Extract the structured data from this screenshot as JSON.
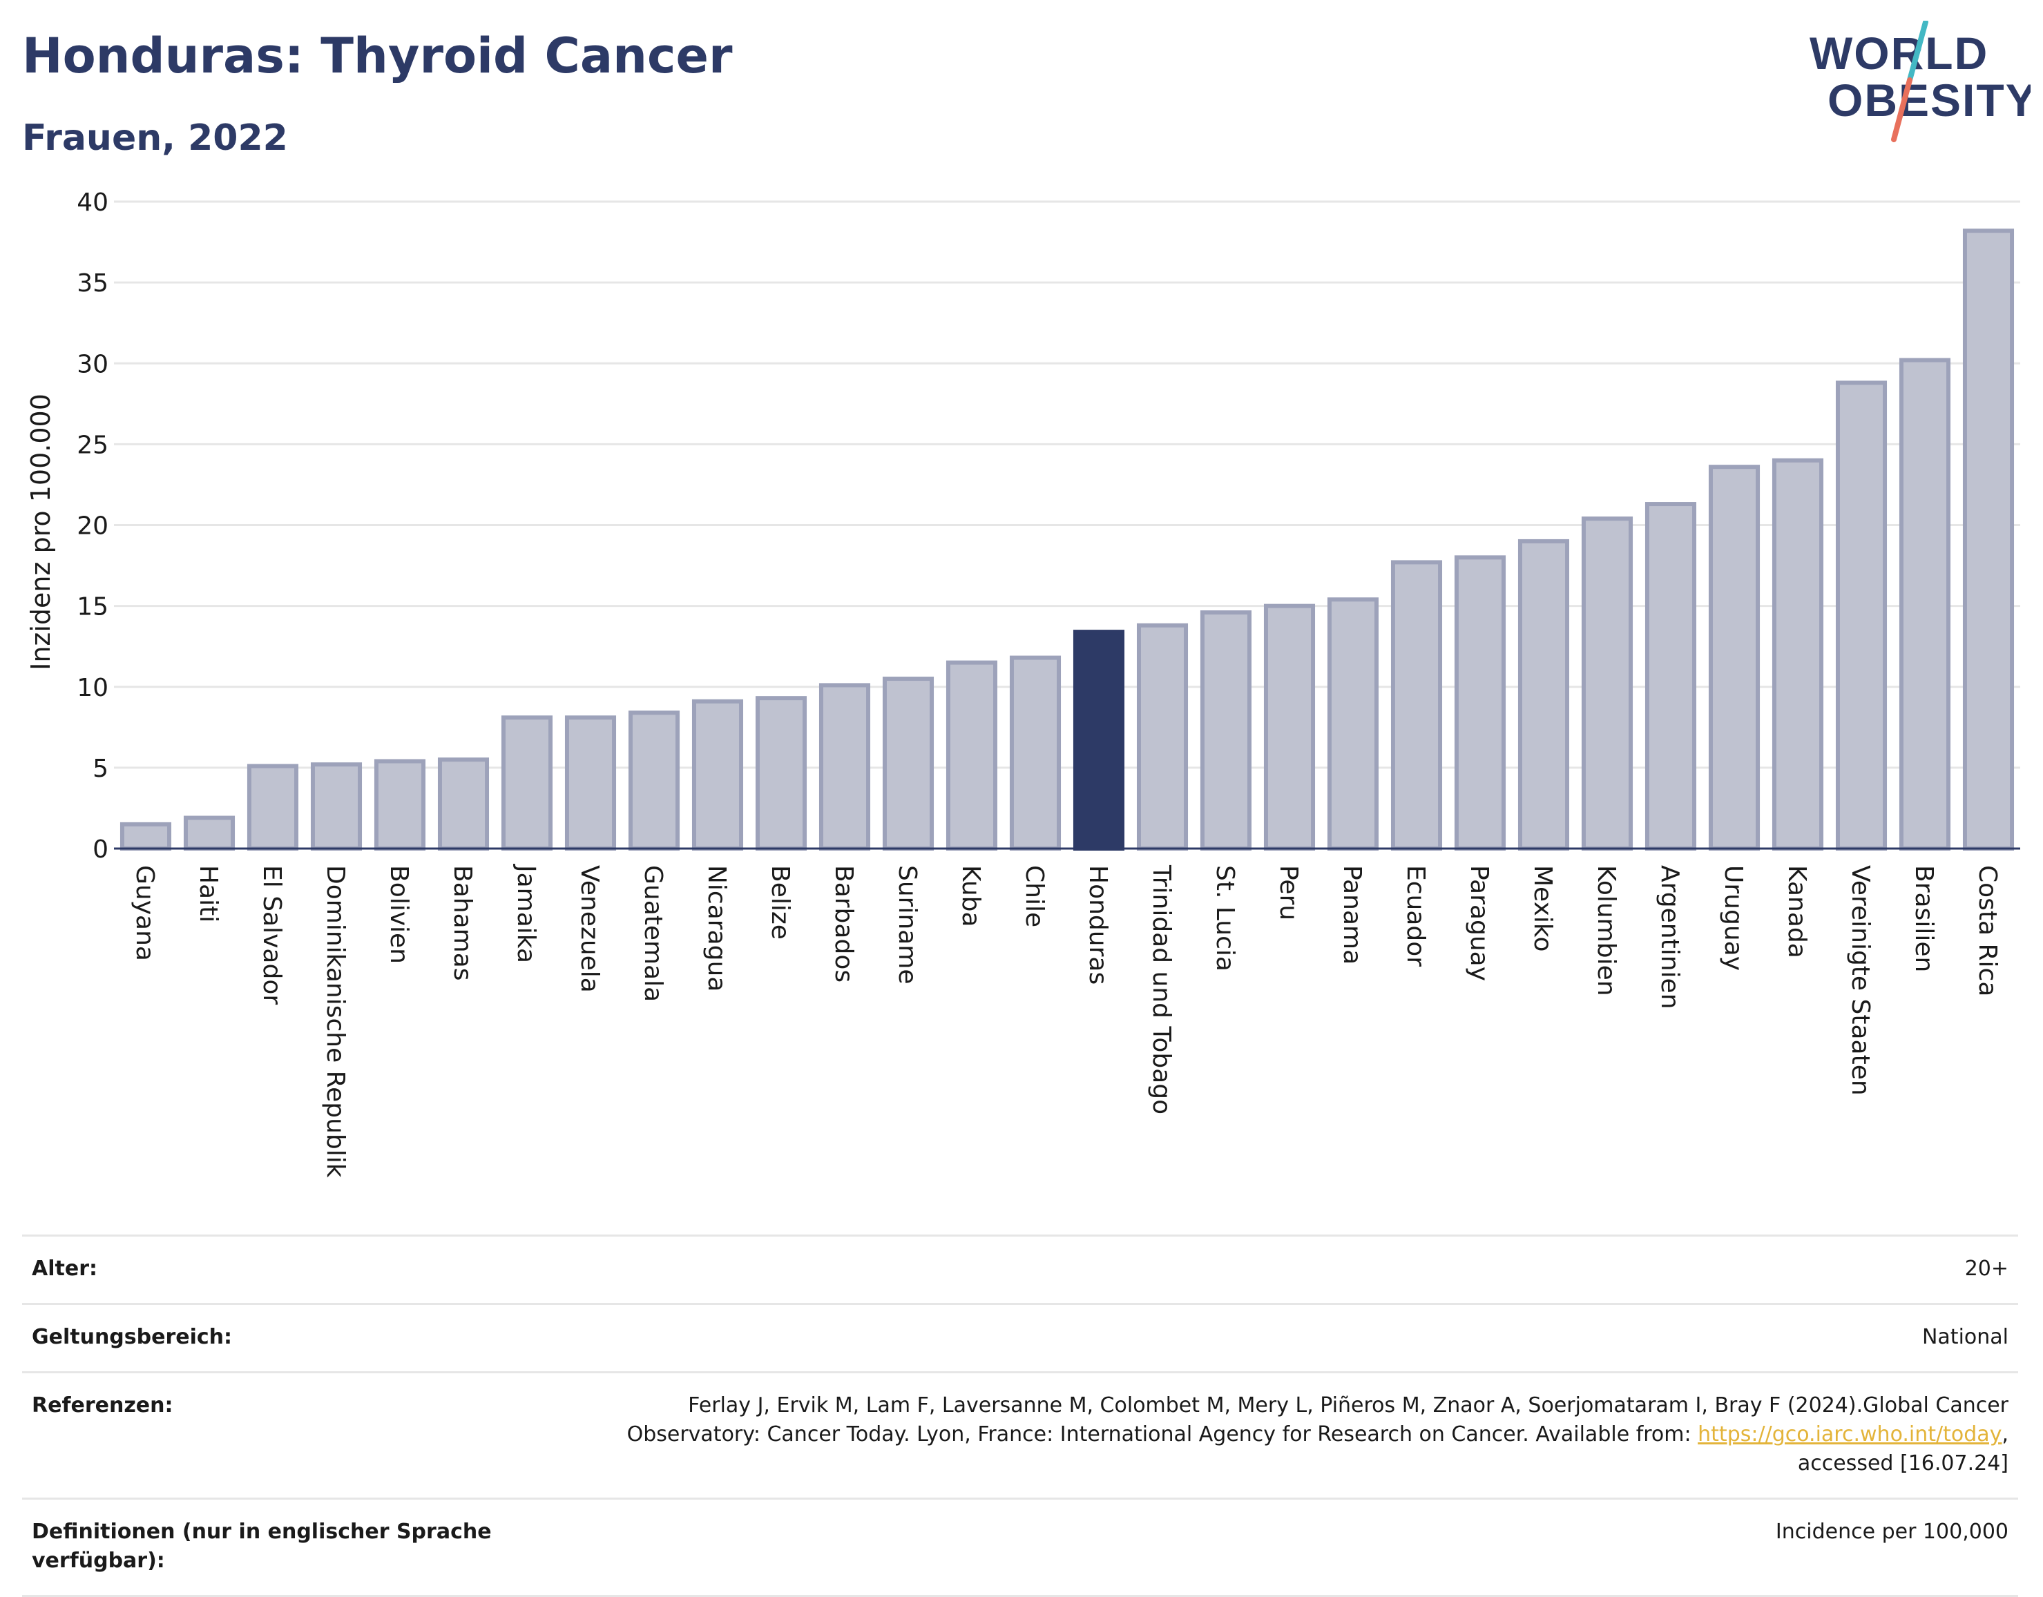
{
  "header": {
    "title": "Honduras: Thyroid Cancer",
    "subtitle": "Frauen, 2022",
    "logo_line1": "WORLD",
    "logo_line2": "OBESITY"
  },
  "colors": {
    "accent": "#2d3a66",
    "bar_default": "#bfc2d0",
    "bar_border": "#9da2ba",
    "bar_highlight": "#2d3a66",
    "grid": "#e6e6e6",
    "logo_teal": "#43b8c4",
    "logo_coral": "#e8705c",
    "link": "#e3b43a"
  },
  "chart_data": {
    "type": "bar",
    "ylabel": "Inzidenz pro 100.000",
    "xlabel": "",
    "ylim": [
      0,
      40
    ],
    "yticks": [
      0,
      5,
      10,
      15,
      20,
      25,
      30,
      35,
      40
    ],
    "grid": true,
    "highlight": "Honduras",
    "categories": [
      "Guyana",
      "Haiti",
      "El Salvador",
      "Dominikanische Republik",
      "Bolivien",
      "Bahamas",
      "Jamaika",
      "Venezuela",
      "Guatemala",
      "Nicaragua",
      "Belize",
      "Barbados",
      "Suriname",
      "Kuba",
      "Chile",
      "Honduras",
      "Trinidad und Tobago",
      "St. Lucia",
      "Peru",
      "Panama",
      "Ecuador",
      "Paraguay",
      "Mexiko",
      "Kolumbien",
      "Argentinien",
      "Uruguay",
      "Kanada",
      "Vereinigte Staaten",
      "Brasilien",
      "Costa Rica"
    ],
    "values": [
      1.5,
      1.9,
      5.1,
      5.2,
      5.4,
      5.5,
      8.1,
      8.1,
      8.4,
      9.1,
      9.3,
      10.1,
      10.5,
      11.5,
      11.8,
      13.4,
      13.8,
      14.6,
      15.0,
      15.4,
      17.7,
      18.0,
      19.0,
      20.4,
      21.3,
      23.6,
      24.0,
      28.8,
      30.2,
      38.2
    ]
  },
  "meta": {
    "age_label": "Alter:",
    "age_value": "20+",
    "scope_label": "Geltungsbereich:",
    "scope_value": "National",
    "references_label": "Referenzen:",
    "references_text_1": "Ferlay J, Ervik M, Lam F, Laversanne M, Colombet M, Mery L, Piñeros M, Znaor A, Soerjomataram I, Bray F (2024).Global Cancer Observatory: Cancer Today. Lyon, France: International Agency for Research on Cancer. Available from:",
    "references_link": "https://gco.iarc.who.int/today",
    "references_text_2": ", accessed [16.07.24]",
    "definitions_label": "Definitionen (nur in englischer Sprache verfügbar):",
    "definitions_value": "Incidence per 100,000"
  }
}
